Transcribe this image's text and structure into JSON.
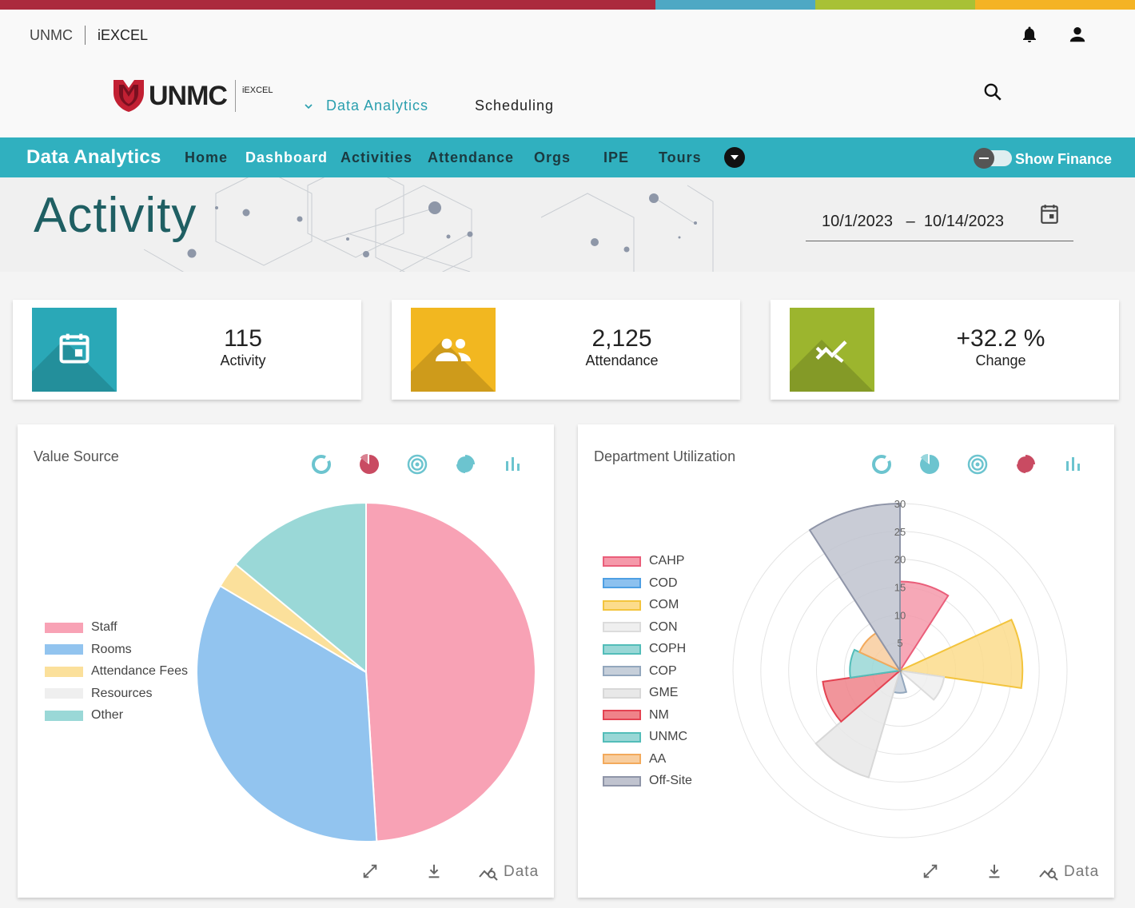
{
  "colors": {
    "teal": "#30b0bf",
    "dark_teal": "#1f5f63",
    "crimson": "#b0203a",
    "yellow": "#f2b720",
    "olive": "#9cb52e",
    "stripe": [
      "#ab2a3d",
      "#4ea8c4",
      "#a8c136",
      "#f4b324"
    ]
  },
  "top_links": {
    "unmc": "UNMC",
    "iexcel": "iEXCEL"
  },
  "logo": {
    "word": "UNMC",
    "sub": "iEXCEL"
  },
  "main_nav": {
    "data_analytics": "Data Analytics",
    "scheduling": "Scheduling"
  },
  "icons": {
    "notifications": "bell-icon",
    "account": "person-icon",
    "search": "search-icon",
    "calendar": "calendar-icon"
  },
  "navbar": {
    "brand": "Data Analytics",
    "links": [
      "Home",
      "Dashboard",
      "Activities",
      "Attendance",
      "Orgs",
      "IPE",
      "Tours"
    ],
    "toggle_label": "Show Finance",
    "toggle_on": false
  },
  "page": {
    "title": "Activity",
    "date_start": "10/1/2023",
    "date_sep": "–",
    "date_end": "10/14/2023"
  },
  "stats": [
    {
      "value": "115",
      "label": "Activity",
      "color": "#2aa8b7",
      "icon": "calendar-icon"
    },
    {
      "value": "2,125",
      "label": "Attendance",
      "color": "#f2b720",
      "icon": "people-icon"
    },
    {
      "value": "+32.2 %",
      "label": "Change",
      "color": "#9cb52e",
      "icon": "trend-icon"
    }
  ],
  "footer": {
    "data_label": "Data"
  },
  "chart_data": [
    {
      "type": "pie",
      "title": "Value Source",
      "categories": [
        "Staff",
        "Rooms",
        "Attendance Fees",
        "Resources",
        "Other"
      ],
      "values": [
        49,
        34.5,
        2.5,
        0,
        14
      ],
      "colors": [
        "#f8a2b5",
        "#92c4ef",
        "#fbe09b",
        "#efefef",
        "#9ad8d7"
      ],
      "legend": "left"
    },
    {
      "type": "polarArea",
      "title": "Department Utilization",
      "categories": [
        "CAHP",
        "COD",
        "COM",
        "CON",
        "COPH",
        "COP",
        "GME",
        "NM",
        "UNMC",
        "AA",
        "Off-Site"
      ],
      "values": [
        16,
        0,
        22,
        8,
        0,
        4,
        20,
        14,
        9,
        8,
        30
      ],
      "colors": [
        "#f599aa",
        "#8cc1ef",
        "#fcdc8c",
        "#efefef",
        "#99d7d6",
        "#c6cfda",
        "#e8e8e8",
        "#ef8389",
        "#99d7d6",
        "#f8cd9e",
        "#c0c3cf"
      ],
      "borders": [
        "#ea5e7a",
        "#4e9fe3",
        "#f3c43d",
        "#dcdcdc",
        "#53bdb9",
        "#93a7bd",
        "#d8d8d8",
        "#e44352",
        "#53bdb9",
        "#f3aa5c",
        "#8f95a8"
      ],
      "rlim": [
        0,
        30
      ],
      "ticks": [
        "5",
        "10",
        "15",
        "20",
        "25",
        "30"
      ],
      "legend": "left"
    }
  ]
}
